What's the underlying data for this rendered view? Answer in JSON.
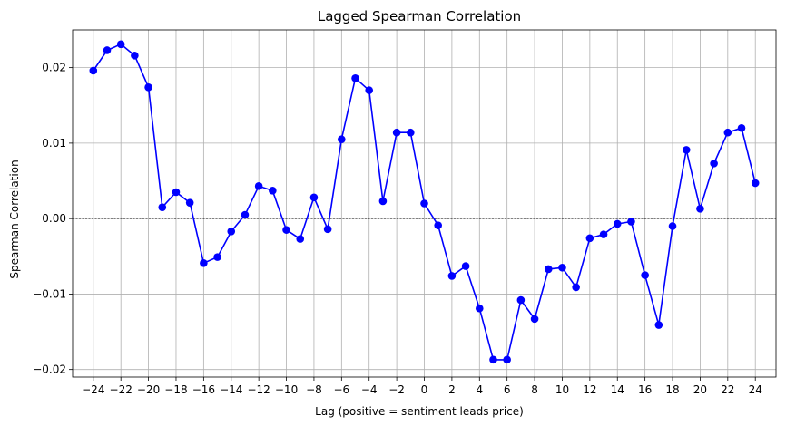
{
  "chart_data": {
    "type": "line",
    "title": "Lagged Spearman Correlation",
    "xlabel": "Lag (positive = sentiment leads price)",
    "ylabel": "Spearman Correlation",
    "xlim": [
      -25.5,
      25.5
    ],
    "ylim": [
      -0.021,
      0.025
    ],
    "xticks": [
      -24,
      -22,
      -20,
      -18,
      -16,
      -14,
      -12,
      -10,
      -8,
      -6,
      -4,
      -2,
      0,
      2,
      4,
      6,
      8,
      10,
      12,
      14,
      16,
      18,
      20,
      22,
      24
    ],
    "xtick_labels": [
      "−24",
      "−22",
      "−20",
      "−18",
      "−16",
      "−14",
      "−12",
      "−10",
      "−8",
      "−6",
      "−4",
      "−2",
      "0",
      "2",
      "4",
      "6",
      "8",
      "10",
      "12",
      "14",
      "16",
      "18",
      "20",
      "22",
      "24"
    ],
    "yticks": [
      -0.02,
      -0.01,
      0.0,
      0.01,
      0.02
    ],
    "ytick_labels": [
      "−0.02",
      "−0.01",
      "0.00",
      "0.01",
      "0.02"
    ],
    "grid": true,
    "reference_line_y": 0,
    "series_color": "#0000ff",
    "x": [
      -24,
      -23,
      -22,
      -21,
      -20,
      -19,
      -18,
      -17,
      -16,
      -15,
      -14,
      -13,
      -12,
      -11,
      -10,
      -9,
      -8,
      -7,
      -6,
      -5,
      -4,
      -3,
      -2,
      -1,
      0,
      1,
      2,
      3,
      4,
      5,
      6,
      7,
      8,
      9,
      10,
      11,
      12,
      13,
      14,
      15,
      16,
      17,
      18,
      19,
      20,
      21,
      22,
      23,
      24
    ],
    "y": [
      0.0196,
      0.0223,
      0.0231,
      0.0216,
      0.0174,
      0.0015,
      0.0035,
      0.0021,
      -0.0059,
      -0.0051,
      -0.0017,
      0.0005,
      0.0043,
      0.0037,
      -0.0015,
      -0.0027,
      0.0028,
      -0.0014,
      0.0105,
      0.0186,
      0.017,
      0.0023,
      0.0114,
      0.0114,
      0.002,
      -0.0009,
      -0.0076,
      -0.0063,
      -0.0119,
      -0.0187,
      -0.0187,
      -0.0108,
      -0.0133,
      -0.0067,
      -0.0065,
      -0.0091,
      -0.0026,
      -0.0021,
      -0.0007,
      -0.0004,
      -0.0075,
      -0.0141,
      -0.001,
      0.0091,
      0.0013,
      0.0073,
      0.0114,
      0.012,
      0.0047
    ]
  }
}
